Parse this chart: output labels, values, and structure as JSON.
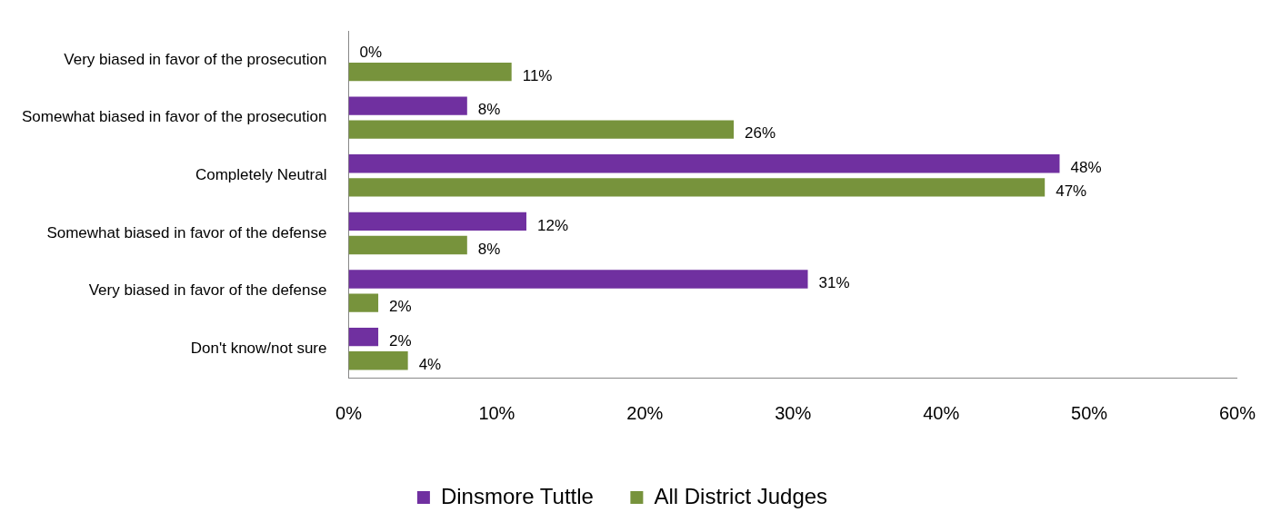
{
  "chart_data": {
    "type": "bar",
    "orientation": "horizontal",
    "categories": [
      "Very biased in favor of the prosecution",
      "Somewhat biased in favor of the prosecution",
      "Completely Neutral",
      "Somewhat biased in favor of the defense",
      "Very biased in favor of the defense",
      "Don't know/not sure"
    ],
    "series": [
      {
        "name": "Dinsmore Tuttle",
        "color": "#7030a0",
        "values": [
          0,
          8,
          48,
          12,
          31,
          2
        ],
        "value_labels": [
          "0%",
          "8%",
          "48%",
          "12%",
          "31%",
          "2%"
        ]
      },
      {
        "name": "All District Judges",
        "color": "#77933c",
        "values": [
          11,
          26,
          47,
          8,
          2,
          4
        ],
        "value_labels": [
          "11%",
          "26%",
          "47%",
          "8%",
          "2%",
          "4%"
        ]
      }
    ],
    "xlim": [
      0,
      60
    ],
    "xticks": [
      {
        "value": 0,
        "label": "0%"
      },
      {
        "value": 10,
        "label": "10%"
      },
      {
        "value": 20,
        "label": "20%"
      },
      {
        "value": 30,
        "label": "30%"
      },
      {
        "value": 40,
        "label": "40%"
      },
      {
        "value": 50,
        "label": "50%"
      },
      {
        "value": 60,
        "label": "60%"
      }
    ],
    "grid": false,
    "legend": "bottom"
  }
}
